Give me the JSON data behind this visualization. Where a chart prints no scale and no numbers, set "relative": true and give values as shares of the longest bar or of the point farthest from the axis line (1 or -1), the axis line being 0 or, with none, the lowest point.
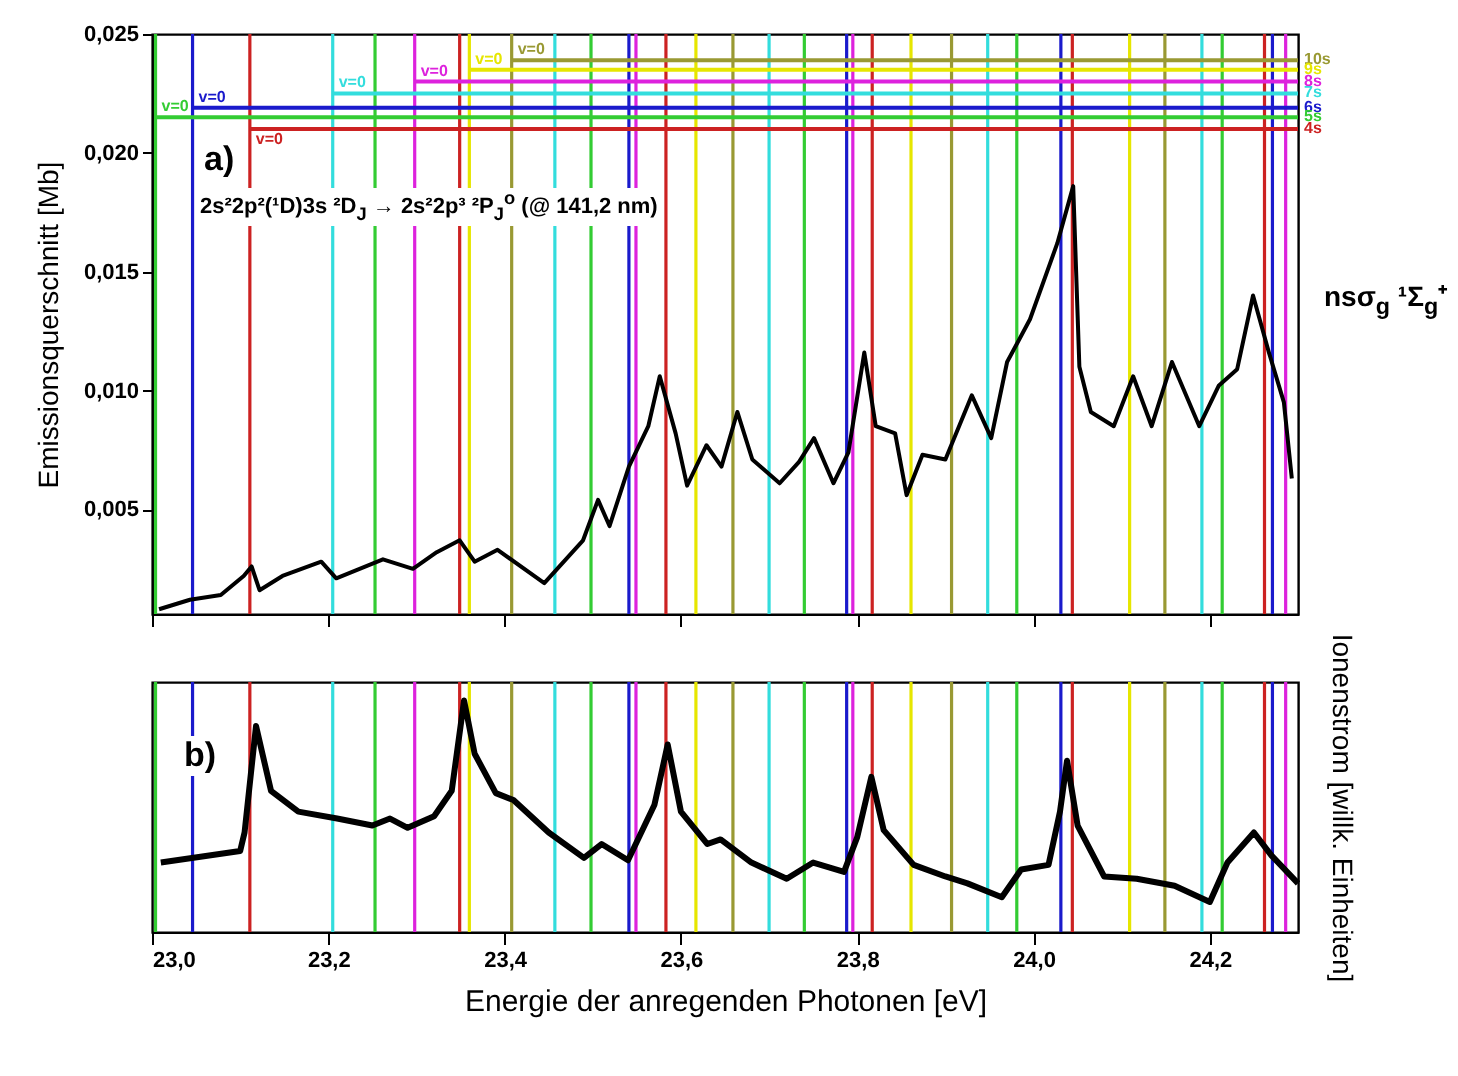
{
  "chart_data": [
    {
      "type": "line",
      "ylabel": "Emissionsquerschnitt [Mb]",
      "xlim": [
        23,
        24.3
      ],
      "ylim": [
        0.0006,
        0.025
      ],
      "xticks": [
        {
          "value": 23,
          "label": null
        },
        {
          "value": 23.2,
          "label": null
        },
        {
          "value": 23.4,
          "label": null
        },
        {
          "value": 23.6,
          "label": null
        },
        {
          "value": 23.8,
          "label": null
        },
        {
          "value": 24,
          "label": null
        },
        {
          "value": 24.2,
          "label": null
        }
      ],
      "yticks": [
        {
          "value": 0.005,
          "label": "0,005"
        },
        {
          "value": 0.01,
          "label": "0,010"
        },
        {
          "value": 0.015,
          "label": "0,015"
        },
        {
          "value": 0.02,
          "label": "0,020"
        },
        {
          "value": 0.025,
          "label": "0,025"
        }
      ],
      "tick_labels": "y",
      "series": [
        {
          "color": "#000000",
          "x": [
            23.008,
            23.043,
            23.078,
            23.104,
            23.113,
            23.122,
            23.148,
            23.192,
            23.209,
            23.262,
            23.296,
            23.323,
            23.349,
            23.366,
            23.392,
            23.445,
            23.489,
            23.506,
            23.519,
            23.541,
            23.563,
            23.576,
            23.594,
            23.607,
            23.629,
            23.646,
            23.664,
            23.681,
            23.712,
            23.734,
            23.751,
            23.773,
            23.79,
            23.808,
            23.821,
            23.843,
            23.856,
            23.874,
            23.9,
            23.93,
            23.952,
            23.97,
            23.996,
            24.027,
            24.045,
            24.052,
            24.065,
            24.091,
            24.113,
            24.134,
            24.157,
            24.188,
            24.21,
            24.231,
            24.249,
            24.267,
            24.284,
            24.293
          ],
          "values": [
            0.0008,
            0.0012,
            0.0014,
            0.0022,
            0.0026,
            0.0016,
            0.0022,
            0.0028,
            0.0021,
            0.0029,
            0.0025,
            0.0032,
            0.0037,
            0.0028,
            0.0033,
            0.0019,
            0.0037,
            0.0054,
            0.0043,
            0.0068,
            0.0085,
            0.0106,
            0.0082,
            0.006,
            0.0077,
            0.0068,
            0.0091,
            0.0071,
            0.0061,
            0.007,
            0.008,
            0.0061,
            0.0074,
            0.0116,
            0.0085,
            0.0082,
            0.0056,
            0.0073,
            0.0071,
            0.0098,
            0.008,
            0.0112,
            0.013,
            0.0162,
            0.0186,
            0.011,
            0.0091,
            0.0085,
            0.0106,
            0.0085,
            0.0112,
            0.0085,
            0.0102,
            0.0109,
            0.014,
            0.0116,
            0.0095,
            0.0063
          ]
        },
        {
          "name": "10s",
          "color": "#999933",
          "x": [
            23.408,
            24.3
          ],
          "values": [
            0.0239,
            0.0239
          ]
        },
        {
          "name": "9s",
          "color": "#e6e600",
          "x": [
            23.36,
            24.3
          ],
          "values": [
            0.0235,
            0.0235
          ]
        },
        {
          "name": "8s",
          "color": "#dd22dd",
          "x": [
            23.298,
            24.3
          ],
          "values": [
            0.023,
            0.023
          ]
        },
        {
          "name": "7s",
          "color": "#33dddd",
          "x": [
            23.205,
            24.3
          ],
          "values": [
            0.0225,
            0.0225
          ]
        },
        {
          "name": "6s",
          "color": "#1a1acc",
          "x": [
            23.046,
            24.3
          ],
          "values": [
            0.0219,
            0.0219
          ]
        },
        {
          "name": "5s",
          "color": "#33cc33",
          "x": [
            23.004,
            24.3
          ],
          "values": [
            0.0215,
            0.0215
          ]
        },
        {
          "name": "4s",
          "color": "#cc2222",
          "x": [
            23.111,
            24.3
          ],
          "values": [
            0.021,
            0.021
          ]
        }
      ],
      "annotations": [
        "a)",
        "2s²2p²(¹D)3s ²D$_{J}$ → 2s²2p³ ²P$_{J}$$^{o}$ (@ 141,2 nm)",
        "nsσ$_{g}$ ¹Σ$_{g}$⁺",
        {
          "text": "v=0",
          "x": 23.408,
          "y": 0.0239
        },
        {
          "text": "v=0",
          "x": 23.36,
          "y": 0.0235
        },
        {
          "text": "v=0",
          "x": 23.298,
          "y": 0.023
        },
        {
          "text": "v=0",
          "x": 23.205,
          "y": 0.0225
        },
        {
          "text": "v=0",
          "x": 23.046,
          "y": 0.0219
        },
        {
          "text": "v=0",
          "x": 23.004,
          "y": 0.0215
        },
        {
          "text": "v=0",
          "x": 23.111,
          "y": 0.0201
        }
      ],
      "ref_lines": [
        {
          "axis": "x",
          "value": 23.004,
          "color": "#33cc33"
        },
        {
          "axis": "x",
          "value": 23.046,
          "color": "#1a1acc"
        },
        {
          "axis": "x",
          "value": 23.111,
          "color": "#cc2222"
        },
        {
          "axis": "x",
          "value": 23.205,
          "color": "#33dddd"
        },
        {
          "axis": "x",
          "value": 23.253,
          "color": "#33cc33"
        },
        {
          "axis": "x",
          "value": 23.298,
          "color": "#dd22dd"
        },
        {
          "axis": "x",
          "value": 23.349,
          "color": "#cc2222"
        },
        {
          "axis": "x",
          "value": 23.36,
          "color": "#e6e600"
        },
        {
          "axis": "x",
          "value": 23.408,
          "color": "#999933"
        },
        {
          "axis": "x",
          "value": 23.457,
          "color": "#33dddd"
        },
        {
          "axis": "x",
          "value": 23.498,
          "color": "#33cc33"
        },
        {
          "axis": "x",
          "value": 23.541,
          "color": "#1a1acc"
        },
        {
          "axis": "x",
          "value": 23.549,
          "color": "#dd22dd"
        },
        {
          "axis": "x",
          "value": 23.583,
          "color": "#cc2222"
        },
        {
          "axis": "x",
          "value": 23.617,
          "color": "#e6e600"
        },
        {
          "axis": "x",
          "value": 23.659,
          "color": "#999933"
        },
        {
          "axis": "x",
          "value": 23.7,
          "color": "#33dddd"
        },
        {
          "axis": "x",
          "value": 23.74,
          "color": "#33cc33"
        },
        {
          "axis": "x",
          "value": 23.788,
          "color": "#1a1acc"
        },
        {
          "axis": "x",
          "value": 23.795,
          "color": "#dd22dd"
        },
        {
          "axis": "x",
          "value": 23.817,
          "color": "#cc2222"
        },
        {
          "axis": "x",
          "value": 23.861,
          "color": "#e6e600"
        },
        {
          "axis": "x",
          "value": 23.907,
          "color": "#999933"
        },
        {
          "axis": "x",
          "value": 23.948,
          "color": "#33dddd"
        },
        {
          "axis": "x",
          "value": 23.981,
          "color": "#33cc33"
        },
        {
          "axis": "x",
          "value": 24.031,
          "color": "#1a1acc"
        },
        {
          "axis": "x",
          "value": 24.044,
          "color": "#cc2222"
        },
        {
          "axis": "x",
          "value": 24.109,
          "color": "#e6e600"
        },
        {
          "axis": "x",
          "value": 24.149,
          "color": "#999933"
        },
        {
          "axis": "x",
          "value": 24.191,
          "color": "#33dddd"
        },
        {
          "axis": "x",
          "value": 24.214,
          "color": "#33cc33"
        },
        {
          "axis": "x",
          "value": 24.262,
          "color": "#cc2222"
        },
        {
          "axis": "x",
          "value": 24.271,
          "color": "#1a1acc"
        },
        {
          "axis": "x",
          "value": 24.286,
          "color": "#dd22dd"
        }
      ]
    },
    {
      "type": "line",
      "relative": true,
      "xlabel": "Energie der anregenden Photonen [eV]",
      "ylabel": "Ionenstrom [willk. Einheiten]",
      "xlim": [
        23,
        24.3
      ],
      "xticks": [
        {
          "value": 23,
          "label": "23,0"
        },
        {
          "value": 23.2,
          "label": "23,2"
        },
        {
          "value": 23.4,
          "label": "23,4"
        },
        {
          "value": 23.6,
          "label": "23,6"
        },
        {
          "value": 23.8,
          "label": "23,8"
        },
        {
          "value": 24,
          "label": "24,0"
        },
        {
          "value": 24.2,
          "label": "24,2"
        }
      ],
      "tick_labels": "x",
      "series": [
        {
          "color": "#000000",
          "x": [
            23.01,
            23.1,
            23.105,
            23.118,
            23.135,
            23.166,
            23.21,
            23.25,
            23.27,
            23.29,
            23.32,
            23.34,
            23.354,
            23.366,
            23.39,
            23.41,
            23.45,
            23.49,
            23.51,
            23.54,
            23.57,
            23.585,
            23.6,
            23.63,
            23.645,
            23.68,
            23.72,
            23.75,
            23.785,
            23.8,
            23.816,
            23.83,
            23.864,
            23.9,
            23.925,
            23.964,
            23.986,
            24.017,
            24.03,
            24.038,
            24.05,
            24.08,
            24.117,
            24.16,
            24.2,
            24.22,
            24.25,
            24.27,
            24.3
          ],
          "values": [
            0.3,
            0.35,
            0.43,
            0.89,
            0.61,
            0.52,
            0.49,
            0.46,
            0.49,
            0.45,
            0.5,
            0.61,
            1,
            0.77,
            0.6,
            0.57,
            0.43,
            0.32,
            0.38,
            0.31,
            0.55,
            0.81,
            0.52,
            0.38,
            0.4,
            0.3,
            0.23,
            0.3,
            0.26,
            0.41,
            0.67,
            0.44,
            0.29,
            0.24,
            0.21,
            0.15,
            0.27,
            0.29,
            0.52,
            0.74,
            0.46,
            0.24,
            0.23,
            0.2,
            0.13,
            0.3,
            0.43,
            0.33,
            0.21
          ]
        }
      ],
      "annotations": [
        "b)"
      ],
      "ref_lines": [
        {
          "axis": "x",
          "value": 23.004,
          "color": "#33cc33"
        },
        {
          "axis": "x",
          "value": 23.046,
          "color": "#1a1acc"
        },
        {
          "axis": "x",
          "value": 23.111,
          "color": "#cc2222"
        },
        {
          "axis": "x",
          "value": 23.205,
          "color": "#33dddd"
        },
        {
          "axis": "x",
          "value": 23.253,
          "color": "#33cc33"
        },
        {
          "axis": "x",
          "value": 23.298,
          "color": "#dd22dd"
        },
        {
          "axis": "x",
          "value": 23.349,
          "color": "#cc2222"
        },
        {
          "axis": "x",
          "value": 23.36,
          "color": "#e6e600"
        },
        {
          "axis": "x",
          "value": 23.408,
          "color": "#999933"
        },
        {
          "axis": "x",
          "value": 23.457,
          "color": "#33dddd"
        },
        {
          "axis": "x",
          "value": 23.498,
          "color": "#33cc33"
        },
        {
          "axis": "x",
          "value": 23.541,
          "color": "#1a1acc"
        },
        {
          "axis": "x",
          "value": 23.549,
          "color": "#dd22dd"
        },
        {
          "axis": "x",
          "value": 23.583,
          "color": "#cc2222"
        },
        {
          "axis": "x",
          "value": 23.617,
          "color": "#e6e600"
        },
        {
          "axis": "x",
          "value": 23.659,
          "color": "#999933"
        },
        {
          "axis": "x",
          "value": 23.7,
          "color": "#33dddd"
        },
        {
          "axis": "x",
          "value": 23.74,
          "color": "#33cc33"
        },
        {
          "axis": "x",
          "value": 23.788,
          "color": "#1a1acc"
        },
        {
          "axis": "x",
          "value": 23.795,
          "color": "#dd22dd"
        },
        {
          "axis": "x",
          "value": 23.817,
          "color": "#cc2222"
        },
        {
          "axis": "x",
          "value": 23.861,
          "color": "#e6e600"
        },
        {
          "axis": "x",
          "value": 23.907,
          "color": "#999933"
        },
        {
          "axis": "x",
          "value": 23.948,
          "color": "#33dddd"
        },
        {
          "axis": "x",
          "value": 23.981,
          "color": "#33cc33"
        },
        {
          "axis": "x",
          "value": 24.031,
          "color": "#1a1acc"
        },
        {
          "axis": "x",
          "value": 24.044,
          "color": "#cc2222"
        },
        {
          "axis": "x",
          "value": 24.109,
          "color": "#e6e600"
        },
        {
          "axis": "x",
          "value": 24.149,
          "color": "#999933"
        },
        {
          "axis": "x",
          "value": 24.191,
          "color": "#33dddd"
        },
        {
          "axis": "x",
          "value": 24.214,
          "color": "#33cc33"
        },
        {
          "axis": "x",
          "value": 24.262,
          "color": "#cc2222"
        },
        {
          "axis": "x",
          "value": 24.271,
          "color": "#1a1acc"
        },
        {
          "axis": "x",
          "value": 24.286,
          "color": "#dd22dd"
        }
      ]
    }
  ]
}
